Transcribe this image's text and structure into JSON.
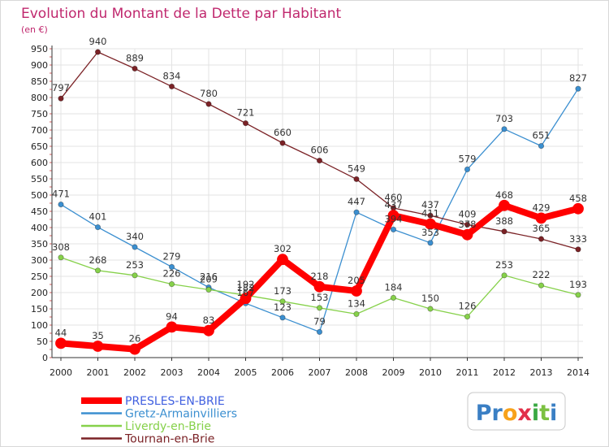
{
  "chart_data": {
    "type": "line",
    "title": "Evolution du Montant de la Dette par Habitant",
    "subtitle": "(en €)",
    "x": [
      "2000",
      "2001",
      "2002",
      "2003",
      "2004",
      "2005",
      "2006",
      "2007",
      "2008",
      "2009",
      "2010",
      "2011",
      "2012",
      "2013",
      "2014"
    ],
    "ylim": [
      0,
      950
    ],
    "yticks": [
      0,
      50,
      100,
      150,
      200,
      250,
      300,
      350,
      400,
      450,
      500,
      550,
      600,
      650,
      700,
      750,
      800,
      850,
      900,
      950
    ],
    "grid": true,
    "legend_position": "bottom-left",
    "series": [
      {
        "name": "PRESLES-EN-BRIE",
        "color": "#ff0000",
        "values": [
          44,
          35,
          26,
          94,
          83,
          182,
          302,
          218,
          205,
          437,
          411,
          378,
          468,
          429,
          458
        ]
      },
      {
        "name": "Gretz-Armainvilliers",
        "color": "#3b8fd0",
        "values": [
          471,
          401,
          340,
          279,
          216,
          167,
          123,
          79,
          447,
          394,
          353,
          579,
          703,
          651,
          827
        ]
      },
      {
        "name": "Liverdy-en-Brie",
        "color": "#86d14a",
        "values": [
          308,
          268,
          253,
          226,
          209,
          192,
          173,
          153,
          134,
          184,
          150,
          126,
          253,
          222,
          193
        ]
      },
      {
        "name": "Tournan-en-Brie",
        "color": "#7b2226",
        "values": [
          797,
          940,
          889,
          834,
          780,
          721,
          660,
          606,
          549,
          460,
          437,
          409,
          388,
          365,
          333
        ]
      }
    ]
  },
  "brand": {
    "logo_text": "Proxiti"
  }
}
